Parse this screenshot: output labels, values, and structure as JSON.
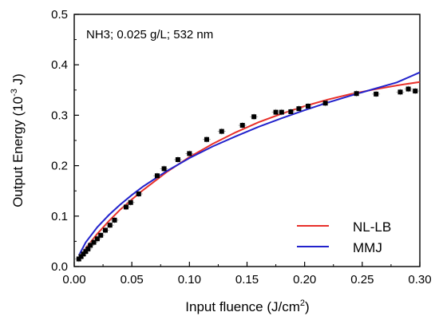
{
  "chart_data": {
    "type": "scatter",
    "annotation": "NH3; 0.025 g/L; 532 nm",
    "xlabel_main": "Input fluence (J/cm",
    "xlabel_sup": "2",
    "xlabel_end": ")",
    "ylabel_main": "Output Energy  (10",
    "ylabel_sup": "-3",
    "ylabel_end": " J)",
    "xlim": [
      0,
      0.3
    ],
    "ylim": [
      0,
      0.5
    ],
    "xticks": [
      0.0,
      0.05,
      0.1,
      0.15,
      0.2,
      0.25,
      0.3
    ],
    "xtick_labels": [
      "0.00",
      "0.05",
      "0.10",
      "0.15",
      "0.20",
      "0.25",
      "0.30"
    ],
    "yticks": [
      0.0,
      0.1,
      0.2,
      0.3,
      0.4,
      0.5
    ],
    "ytick_labels": [
      "0.0",
      "0.1",
      "0.2",
      "0.3",
      "0.4",
      "0.5"
    ],
    "legend_position": "bottom-right",
    "points": [
      {
        "x": 0.004,
        "y": 0.015
      },
      {
        "x": 0.006,
        "y": 0.02
      },
      {
        "x": 0.008,
        "y": 0.025
      },
      {
        "x": 0.01,
        "y": 0.03
      },
      {
        "x": 0.012,
        "y": 0.035
      },
      {
        "x": 0.014,
        "y": 0.042
      },
      {
        "x": 0.017,
        "y": 0.048
      },
      {
        "x": 0.02,
        "y": 0.055
      },
      {
        "x": 0.023,
        "y": 0.062
      },
      {
        "x": 0.027,
        "y": 0.072
      },
      {
        "x": 0.031,
        "y": 0.082
      },
      {
        "x": 0.035,
        "y": 0.092
      },
      {
        "x": 0.045,
        "y": 0.118
      },
      {
        "x": 0.049,
        "y": 0.127
      },
      {
        "x": 0.056,
        "y": 0.144
      },
      {
        "x": 0.072,
        "y": 0.18
      },
      {
        "x": 0.078,
        "y": 0.194
      },
      {
        "x": 0.09,
        "y": 0.212
      },
      {
        "x": 0.1,
        "y": 0.224
      },
      {
        "x": 0.115,
        "y": 0.252
      },
      {
        "x": 0.128,
        "y": 0.268
      },
      {
        "x": 0.146,
        "y": 0.28
      },
      {
        "x": 0.156,
        "y": 0.297
      },
      {
        "x": 0.175,
        "y": 0.306
      },
      {
        "x": 0.18,
        "y": 0.306
      },
      {
        "x": 0.188,
        "y": 0.307
      },
      {
        "x": 0.195,
        "y": 0.313
      },
      {
        "x": 0.203,
        "y": 0.318
      },
      {
        "x": 0.218,
        "y": 0.324
      },
      {
        "x": 0.245,
        "y": 0.343
      },
      {
        "x": 0.262,
        "y": 0.342
      },
      {
        "x": 0.283,
        "y": 0.346
      },
      {
        "x": 0.29,
        "y": 0.352
      },
      {
        "x": 0.296,
        "y": 0.348
      }
    ],
    "series": [
      {
        "name": "NL-LB",
        "color": "#e8302a",
        "x": [
          0.004,
          0.01,
          0.02,
          0.03,
          0.04,
          0.05,
          0.06,
          0.08,
          0.1,
          0.12,
          0.14,
          0.16,
          0.18,
          0.2,
          0.22,
          0.24,
          0.26,
          0.28,
          0.3
        ],
        "y": [
          0.016,
          0.036,
          0.065,
          0.09,
          0.113,
          0.133,
          0.152,
          0.187,
          0.217,
          0.243,
          0.266,
          0.286,
          0.303,
          0.318,
          0.331,
          0.342,
          0.351,
          0.359,
          0.366
        ]
      },
      {
        "name": "MMJ",
        "color": "#2222cc",
        "x": [
          0.004,
          0.01,
          0.02,
          0.03,
          0.04,
          0.05,
          0.06,
          0.08,
          0.1,
          0.12,
          0.14,
          0.16,
          0.18,
          0.2,
          0.22,
          0.24,
          0.26,
          0.28,
          0.3
        ],
        "y": [
          0.022,
          0.048,
          0.078,
          0.102,
          0.123,
          0.142,
          0.159,
          0.189,
          0.215,
          0.238,
          0.258,
          0.277,
          0.294,
          0.31,
          0.325,
          0.339,
          0.352,
          0.365,
          0.385
        ]
      }
    ]
  }
}
